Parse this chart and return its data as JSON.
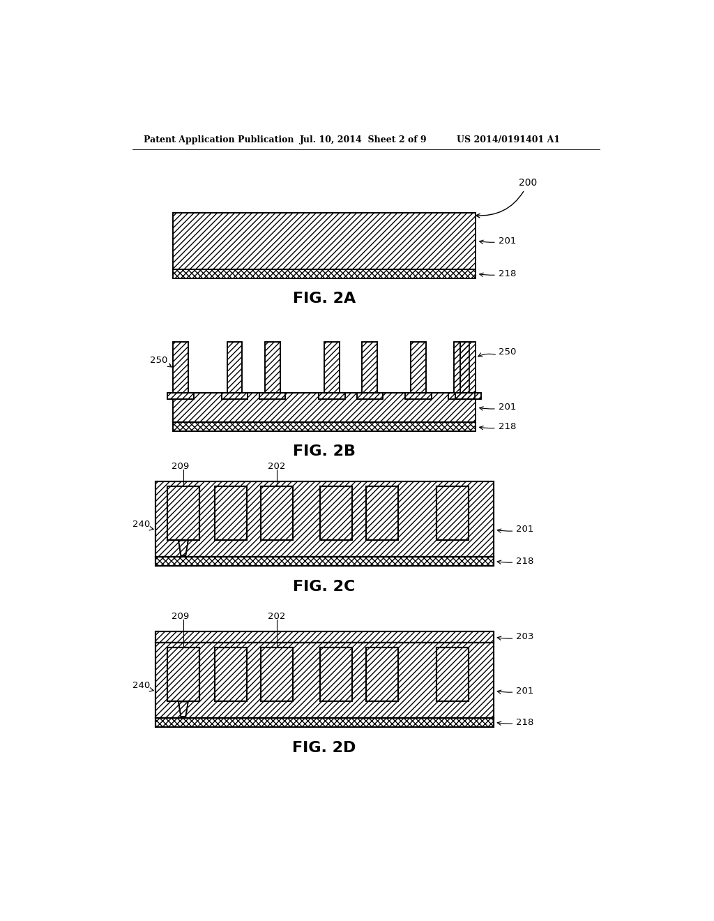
{
  "header_left": "Patent Application Publication",
  "header_mid": "Jul. 10, 2014  Sheet 2 of 9",
  "header_right": "US 2014/0191401 A1",
  "bg_color": "#ffffff",
  "fig_label_2a": "FIG. 2A",
  "fig_label_2b": "FIG. 2B",
  "fig_label_2c": "FIG. 2C",
  "fig_label_2d": "FIG. 2D"
}
